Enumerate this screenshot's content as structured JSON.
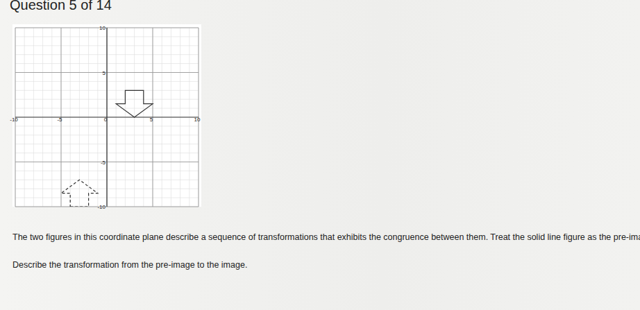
{
  "header": {
    "title": "Question 5 of 14"
  },
  "chart_data": {
    "type": "coordinate_plane",
    "xlim": [
      -10,
      10
    ],
    "ylim": [
      -10,
      10
    ],
    "xticks": [
      -10,
      -5,
      0,
      5,
      10
    ],
    "yticks": [
      -10,
      -5,
      5,
      10
    ],
    "grid": true,
    "series": [
      {
        "line_style": "solid",
        "color": "#333333",
        "x": [
          2,
          4,
          4,
          5,
          3,
          1,
          2
        ],
        "y": [
          3,
          3,
          1.5,
          1.5,
          0,
          1.5,
          1.5
        ]
      },
      {
        "line_style": "dashed",
        "color": "#333333",
        "x": [
          -4,
          -2,
          -2,
          -1,
          -3,
          -5,
          -4
        ],
        "y": [
          -10,
          -10,
          -8.5,
          -8.5,
          -7,
          -8.5,
          -8.5
        ]
      }
    ]
  },
  "question": {
    "prompt": "The two figures in this coordinate plane describe a sequence of transformations that exhibits the congruence between them. Treat the solid line figure as the pre-image.",
    "task": "Describe the transformation from the pre-image to the image."
  }
}
